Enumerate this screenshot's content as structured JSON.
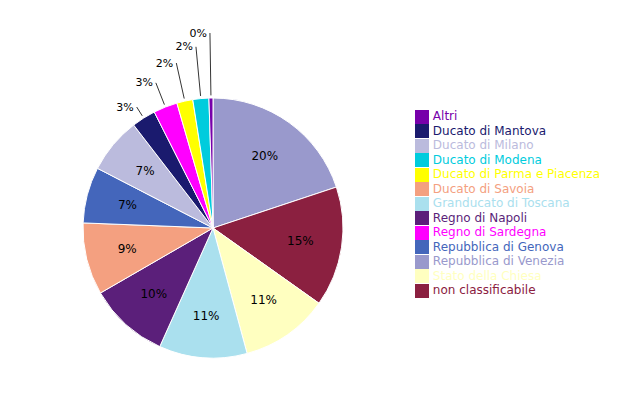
{
  "chart_data": {
    "type": "pie",
    "categories": [
      "Repubblica di Venezia",
      "non classificabile",
      "Stato della Chiesa",
      "Granducato di Toscana",
      "Regno di Napoli",
      "Ducato di Savoia",
      "Repubblica di Genova",
      "Ducato di Milano",
      "Ducato di Mantova",
      "Regno di Sardegna",
      "Ducato di Parma e Piacenza",
      "Ducato di Modena",
      "Altri"
    ],
    "values": [
      20,
      15,
      11,
      11,
      10,
      9,
      7,
      7,
      3,
      3,
      2,
      2,
      0.5
    ],
    "value_labels": [
      "20%",
      "15%",
      "11%",
      "11%",
      "10%",
      "9%",
      "7%",
      "7%",
      "3%",
      "3%",
      "2%",
      "2%",
      "0%"
    ],
    "colors": [
      "#9999CC",
      "#8B2040",
      "#FFFFC0",
      "#AAE0EE",
      "#5B1F7A",
      "#F4A080",
      "#4466BB",
      "#BBBBDD",
      "#1A1A6E",
      "#FF00FF",
      "#FFFF00",
      "#00CCDD",
      "#7700AA"
    ],
    "data_labels": true,
    "legend": "right"
  }
}
